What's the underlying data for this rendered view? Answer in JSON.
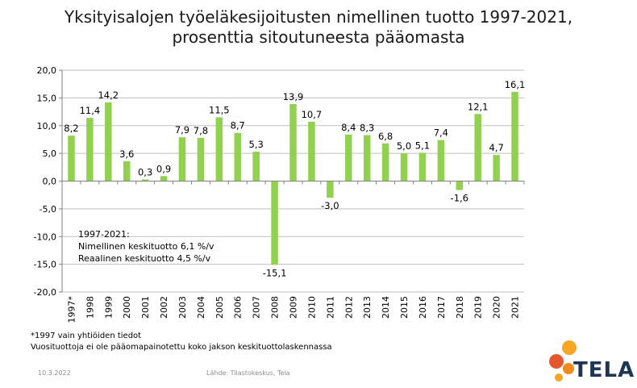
{
  "title_line1": "Yksityisalojen työeläkesijoitusten nimellinen tuotto 1997-2021,",
  "title_line2": "prosenttia sitoutuneesta pääomasta",
  "footnote1": "*1997 vain yhtiöiden tiedot",
  "footnote2": "Vuosituottoja ei ole pääomapainotettu koko jakson keskituottolaskennassa",
  "footer_date": "10.3.2022",
  "footer_source": "Lähde: Tilastokeskus, Tela",
  "logo_text": "TELA",
  "chart_data": {
    "type": "bar",
    "categories": [
      "1997*",
      "1998",
      "1999",
      "2000",
      "2001",
      "2002",
      "2003",
      "2004",
      "2005",
      "2006",
      "2007",
      "2008",
      "2009",
      "2010",
      "2011",
      "2012",
      "2013",
      "2014",
      "2015",
      "2016",
      "2017",
      "2018",
      "2019",
      "2020",
      "2021"
    ],
    "values": [
      8.2,
      11.4,
      14.2,
      3.6,
      0.3,
      0.9,
      7.9,
      7.8,
      11.5,
      8.7,
      5.3,
      -15.1,
      13.9,
      10.7,
      -3.0,
      8.4,
      8.3,
      6.8,
      5.0,
      5.1,
      7.4,
      -1.6,
      12.1,
      4.7,
      16.1
    ],
    "value_labels": [
      "8,2",
      "11,4",
      "14,2",
      "3,6",
      "0,3",
      "0,9",
      "7,9",
      "7,8",
      "11,5",
      "8,7",
      "5,3",
      "-15,1",
      "13,9",
      "10,7",
      "-3,0",
      "8,4",
      "8,3",
      "6,8",
      "5,0",
      "5,1",
      "7,4",
      "-1,6",
      "12,1",
      "4,7",
      "16,1"
    ],
    "ylim": [
      -20,
      20
    ],
    "yticks": [
      -20,
      -15,
      -10,
      -5,
      0,
      5,
      10,
      15,
      20
    ],
    "ytick_labels": [
      "-20,0",
      "-15,0",
      "-10,0",
      "-5,0",
      "0,0",
      "5,0",
      "10,0",
      "15,0",
      "20,0"
    ],
    "bar_color": "#92d050",
    "grid": true,
    "annotation": [
      "1997-2021:",
      "Nimellinen keskituotto 6,1 %/v",
      "Reaalinen keskituotto 4,5 %/v"
    ]
  },
  "colors": {
    "logo_orange": "#f08a1c",
    "logo_orange_light": "#f6a623",
    "logo_red": "#e4572e",
    "logo_text": "#1c3654"
  }
}
